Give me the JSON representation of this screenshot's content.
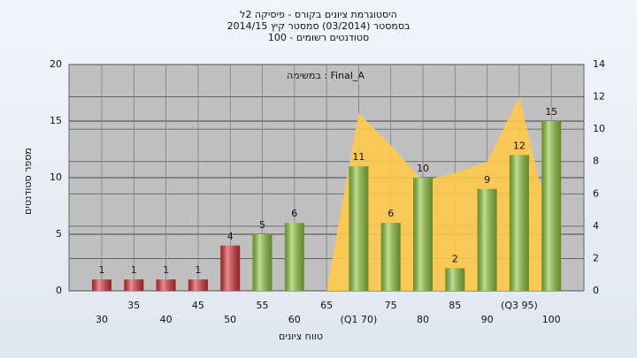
{
  "chart_data": {
    "type": "bar",
    "title_lines": [
      "היסטוגרמת ציונים בקורס - פיסיקה 2ל",
      "בסמסטר  (03/2014)  סמסטר קיץ  2014/15",
      "סטודנטים רשומים - 100"
    ],
    "annotation": "Final_A : במשימה",
    "y_label": "מספר סטודנטים",
    "x_label": "טווח ציונים",
    "categories": [
      "30",
      "35",
      "40",
      "45",
      "50",
      "55",
      "60",
      "65",
      "(Q1 70)",
      "75",
      "80",
      "85",
      "90",
      "(Q3 95)",
      "100"
    ],
    "values": [
      1,
      1,
      1,
      1,
      4,
      5,
      6,
      0,
      11,
      6,
      10,
      2,
      9,
      12,
      15
    ],
    "value_labels": [
      "1",
      "1",
      "1",
      "1",
      "4",
      "5",
      "6",
      null,
      "11",
      "6",
      "10",
      "2",
      "9",
      "12",
      "15"
    ],
    "colors": [
      "#d8313a",
      "#d8313a",
      "#d8313a",
      "#d8313a",
      "#d8313a",
      "#8cc43c",
      "#8cc43c",
      "#8cc43c",
      "#8cc43c",
      "#8cc43c",
      "#8cc43c",
      "#8cc43c",
      "#8cc43c",
      "#8cc43c",
      "#8cc43c"
    ],
    "area": {
      "color": "#ffc94a",
      "axis": "y2",
      "values": [
        null,
        null,
        null,
        null,
        null,
        null,
        null,
        0,
        11,
        9,
        6.8,
        7.3,
        8,
        12,
        3.8
      ]
    },
    "ylim": [
      0,
      20
    ],
    "yticks": [
      0,
      5,
      10,
      15,
      20
    ],
    "y2lim": [
      0,
      14
    ],
    "y2ticks": [
      0,
      2,
      4,
      6,
      8,
      10,
      12,
      14
    ],
    "grid": true
  }
}
